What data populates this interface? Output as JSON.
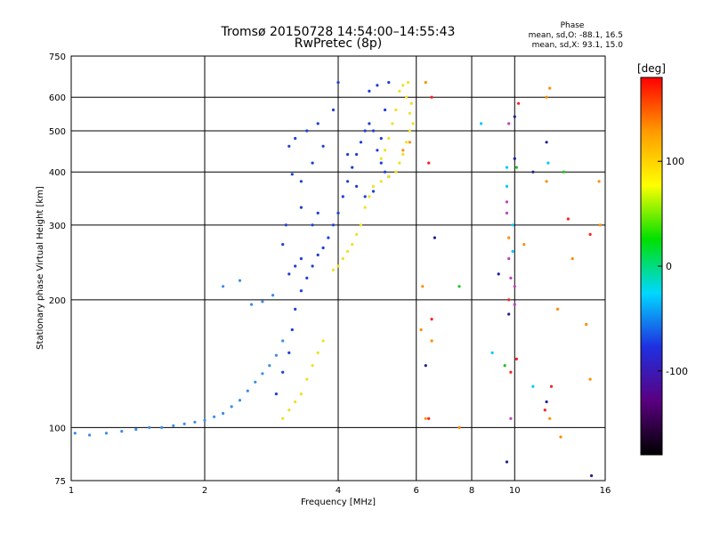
{
  "chart_data": {
    "type": "scatter",
    "title": "Tromsø 20150728 14:54:00–14:55:43",
    "subtitle": "RwPretec (8p)",
    "xlabel": "Frequency [MHz]",
    "ylabel": "Stationary phase Virtual Height [km]",
    "xscale": "log",
    "yscale": "log",
    "xlim": [
      1,
      16
    ],
    "ylim": [
      75,
      750
    ],
    "grid": true,
    "x_ticks": [
      1,
      2,
      4,
      6,
      8,
      10,
      16
    ],
    "y_ticks": [
      75,
      100,
      200,
      300,
      400,
      500,
      600,
      750
    ],
    "phase_stats": {
      "title": "Phase",
      "line_O": "mean, sd,O: -88.1, 16.5",
      "line_X": "mean, sd,X:  93.1, 15.0"
    },
    "colorbar": {
      "label": "[deg]",
      "range": [
        -180,
        180
      ],
      "ticks": [
        100,
        0,
        -100
      ],
      "colors": [
        "#000000",
        "#5a0080",
        "#1f2fe0",
        "#00d8ff",
        "#00e000",
        "#ffff00",
        "#ff9a00",
        "#ff0000"
      ]
    },
    "series": [
      {
        "color": "#3a8ee6",
        "points": [
          [
            1.02,
            97
          ],
          [
            1.1,
            96
          ],
          [
            1.2,
            97
          ],
          [
            1.3,
            98
          ],
          [
            1.4,
            99
          ],
          [
            1.5,
            100
          ],
          [
            1.6,
            100
          ],
          [
            1.7,
            101
          ],
          [
            1.8,
            102
          ],
          [
            1.9,
            103
          ],
          [
            2.0,
            104
          ],
          [
            2.1,
            106
          ],
          [
            2.2,
            108
          ],
          [
            2.3,
            112
          ],
          [
            2.4,
            116
          ],
          [
            2.5,
            122
          ],
          [
            2.6,
            128
          ],
          [
            2.7,
            134
          ],
          [
            2.8,
            140
          ],
          [
            2.9,
            148
          ],
          [
            3.0,
            160
          ],
          [
            2.55,
            195
          ],
          [
            2.7,
            198
          ],
          [
            2.85,
            205
          ],
          [
            2.2,
            215
          ],
          [
            2.4,
            222
          ]
        ]
      },
      {
        "color": "#1d3fd8",
        "points": [
          [
            2.9,
            120
          ],
          [
            3.0,
            135
          ],
          [
            3.1,
            150
          ],
          [
            3.15,
            170
          ],
          [
            3.2,
            190
          ],
          [
            3.3,
            210
          ],
          [
            3.4,
            225
          ],
          [
            3.5,
            240
          ],
          [
            3.6,
            255
          ],
          [
            3.7,
            265
          ],
          [
            3.8,
            280
          ],
          [
            3.9,
            300
          ],
          [
            4.0,
            320
          ],
          [
            4.1,
            350
          ],
          [
            4.2,
            380
          ],
          [
            4.3,
            410
          ],
          [
            4.4,
            440
          ],
          [
            4.5,
            470
          ],
          [
            4.6,
            500
          ],
          [
            4.7,
            520
          ],
          [
            4.8,
            500
          ],
          [
            4.9,
            450
          ],
          [
            5.0,
            420
          ],
          [
            5.1,
            400
          ],
          [
            5.2,
            390
          ],
          [
            3.15,
            395
          ],
          [
            3.3,
            380
          ],
          [
            3.5,
            420
          ],
          [
            3.7,
            460
          ],
          [
            3.9,
            560
          ],
          [
            4.0,
            650
          ],
          [
            4.2,
            440
          ],
          [
            4.4,
            370
          ],
          [
            4.6,
            350
          ],
          [
            4.8,
            360
          ],
          [
            5.0,
            480
          ],
          [
            5.1,
            560
          ],
          [
            5.2,
            650
          ],
          [
            4.9,
            640
          ],
          [
            4.7,
            620
          ],
          [
            3.3,
            330
          ],
          [
            3.5,
            300
          ],
          [
            3.6,
            320
          ],
          [
            3.3,
            250
          ],
          [
            3.2,
            240
          ],
          [
            3.1,
            230
          ],
          [
            3.05,
            300
          ],
          [
            3.0,
            270
          ],
          [
            3.1,
            460
          ],
          [
            3.2,
            480
          ],
          [
            3.4,
            500
          ],
          [
            3.6,
            520
          ]
        ]
      },
      {
        "color": "#f0e020",
        "points": [
          [
            3.0,
            105
          ],
          [
            3.1,
            110
          ],
          [
            3.2,
            115
          ],
          [
            3.3,
            120
          ],
          [
            3.4,
            130
          ],
          [
            3.5,
            140
          ],
          [
            3.6,
            150
          ],
          [
            3.7,
            160
          ],
          [
            3.9,
            235
          ],
          [
            4.0,
            240
          ],
          [
            4.1,
            250
          ],
          [
            4.2,
            260
          ],
          [
            4.3,
            270
          ],
          [
            4.4,
            285
          ],
          [
            4.5,
            300
          ],
          [
            4.6,
            330
          ],
          [
            4.7,
            350
          ],
          [
            4.8,
            370
          ],
          [
            5.0,
            380
          ],
          [
            5.2,
            390
          ],
          [
            5.4,
            400
          ],
          [
            5.5,
            420
          ],
          [
            5.6,
            440
          ],
          [
            5.7,
            470
          ],
          [
            5.8,
            500
          ],
          [
            5.8,
            550
          ],
          [
            5.7,
            600
          ],
          [
            5.6,
            640
          ],
          [
            5.5,
            620
          ],
          [
            5.4,
            560
          ],
          [
            5.3,
            520
          ],
          [
            5.2,
            480
          ],
          [
            5.1,
            450
          ],
          [
            5.0,
            430
          ],
          [
            5.9,
            520
          ],
          [
            5.85,
            580
          ],
          [
            5.75,
            650
          ]
        ]
      },
      {
        "color": "#ff8c00",
        "points": [
          [
            5.6,
            450
          ],
          [
            5.8,
            470
          ],
          [
            6.2,
            215
          ],
          [
            6.3,
            105
          ],
          [
            6.3,
            650
          ],
          [
            6.5,
            160
          ],
          [
            7.5,
            100
          ],
          [
            9.7,
            280
          ],
          [
            10.5,
            270
          ],
          [
            11.8,
            600
          ],
          [
            12.0,
            630
          ],
          [
            11.8,
            380
          ],
          [
            12.5,
            190
          ],
          [
            13.5,
            250
          ],
          [
            14.5,
            175
          ],
          [
            14.8,
            130
          ],
          [
            12.0,
            105
          ],
          [
            12.7,
            95
          ],
          [
            15.5,
            380
          ],
          [
            15.6,
            300
          ],
          [
            6.15,
            170
          ]
        ]
      },
      {
        "color": "#ff2020",
        "points": [
          [
            6.4,
            420
          ],
          [
            6.5,
            180
          ],
          [
            6.4,
            105
          ],
          [
            9.7,
            200
          ],
          [
            9.8,
            135
          ],
          [
            10.1,
            145
          ],
          [
            11.7,
            110
          ],
          [
            12.1,
            125
          ],
          [
            13.2,
            310
          ],
          [
            14.8,
            285
          ],
          [
            10.2,
            580
          ],
          [
            6.5,
            600
          ]
        ]
      },
      {
        "color": "#00c8ff",
        "points": [
          [
            8.4,
            520
          ],
          [
            8.9,
            150
          ],
          [
            9.6,
            370
          ],
          [
            9.9,
            300
          ],
          [
            9.9,
            260
          ],
          [
            11.0,
            125
          ],
          [
            11.9,
            420
          ],
          [
            9.6,
            410
          ]
        ]
      },
      {
        "color": "#202090",
        "points": [
          [
            6.3,
            140
          ],
          [
            6.6,
            280
          ],
          [
            9.2,
            230
          ],
          [
            9.7,
            185
          ],
          [
            9.6,
            83
          ],
          [
            10.0,
            540
          ],
          [
            10.0,
            430
          ],
          [
            11.0,
            400
          ],
          [
            11.8,
            470
          ],
          [
            14.9,
            77
          ],
          [
            11.8,
            115
          ]
        ]
      },
      {
        "color": "#c040c0",
        "points": [
          [
            9.6,
            320
          ],
          [
            9.7,
            250
          ],
          [
            9.8,
            225
          ],
          [
            9.7,
            520
          ],
          [
            9.6,
            340
          ],
          [
            10.0,
            215
          ],
          [
            9.8,
            105
          ],
          [
            10.0,
            195
          ]
        ]
      },
      {
        "color": "#20c020",
        "points": [
          [
            7.5,
            215
          ],
          [
            10.1,
            410
          ],
          [
            9.5,
            140
          ],
          [
            12.9,
            400
          ]
        ]
      }
    ]
  }
}
